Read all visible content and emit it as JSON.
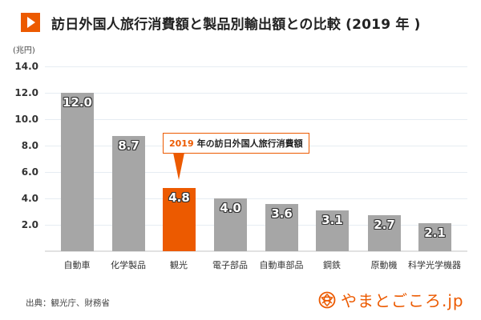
{
  "header": {
    "icon": "play-icon",
    "title": "訪日外国人旅行消費額と製品別輸出額との比較 (2019 年 )"
  },
  "chart_data": {
    "type": "bar",
    "title": "訪日外国人旅行消費額と製品別輸出額との比較 (2019 年 )",
    "xlabel": "",
    "ylabel": "(兆円)",
    "unit_label": "(兆円)",
    "categories": [
      "自動車",
      "化学製品",
      "観光",
      "電子部品",
      "自動車部品",
      "鋼鉄",
      "原動機",
      "科学光学機器"
    ],
    "values": [
      12.0,
      8.7,
      4.8,
      4.0,
      3.6,
      3.1,
      2.7,
      2.1
    ],
    "value_labels": [
      "12.0",
      "8.7",
      "4.8",
      "4.0",
      "3.6",
      "3.1",
      "2.7",
      "2.1"
    ],
    "highlight_index": 2,
    "colors": {
      "default": "#a6a6a6",
      "highlight": "#ec5a00"
    },
    "ylim": [
      0,
      14
    ],
    "yticks": [
      "14.0",
      "12.0",
      "10.0",
      "8.0",
      "6.0",
      "4.0",
      "2.0"
    ],
    "ytick_values": [
      14,
      12,
      10,
      8,
      6,
      4,
      2
    ],
    "grid": true,
    "legend": "none",
    "annotation": {
      "year": "2019",
      "text": "年の訪日外国人旅行消費額",
      "target": "観光"
    }
  },
  "footer": {
    "source": "出典：観光庁、財務省",
    "logo_text": "やまとごころ.jp",
    "logo_icon": "yamatogokoro-logo-icon"
  }
}
